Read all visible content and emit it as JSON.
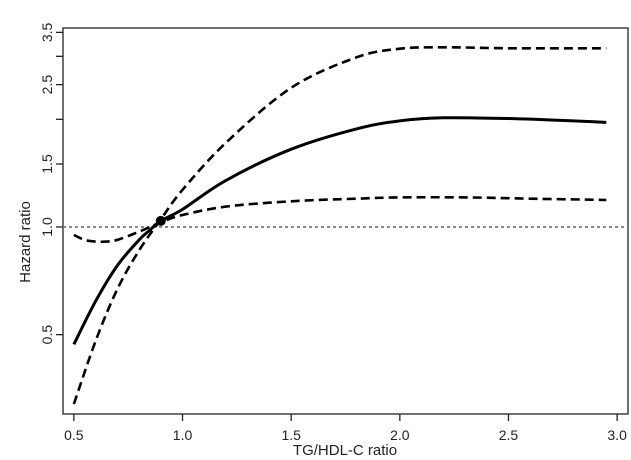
{
  "chart_data": {
    "type": "line",
    "title": "",
    "xlabel": "TG/HDL-C ratio",
    "ylabel": "Hazard ratio",
    "xlim": [
      0.45,
      3.05
    ],
    "ylim": [
      0.3,
      3.6
    ],
    "y_scale": "log",
    "x_ticks": [
      0.5,
      1.0,
      1.5,
      2.0,
      2.5,
      3.0
    ],
    "x_tick_labels": [
      "0.5",
      "1.0",
      "1.5",
      "2.0",
      "2.5",
      "3.0"
    ],
    "y_ticks": [
      0.5,
      1.0,
      1.5,
      2.5,
      3.5
    ],
    "y_tick_labels": [
      "0.5",
      "1.0",
      "1.5",
      "2.5",
      "3.5"
    ],
    "y_minor_ticks": [
      2.0,
      3.0
    ],
    "grid": false,
    "reference_line": {
      "y": 1.0,
      "style": "dotted",
      "color": "#888888"
    },
    "reference_point": {
      "x": 0.9,
      "y": 1.04
    },
    "series": [
      {
        "role": "estimate",
        "style": "solid",
        "color": "#000000",
        "x": [
          0.5,
          0.6,
          0.7,
          0.8,
          0.85,
          0.9,
          1.0,
          1.2,
          1.5,
          1.8,
          2.0,
          2.2,
          2.5,
          2.8,
          2.95
        ],
        "values": [
          0.47,
          0.62,
          0.78,
          0.92,
          0.98,
          1.04,
          1.12,
          1.35,
          1.65,
          1.88,
          1.98,
          2.02,
          2.01,
          1.98,
          1.96
        ]
      },
      {
        "role": "upper-ci",
        "style": "dashed",
        "color": "#000000",
        "x": [
          0.5,
          0.6,
          0.7,
          0.8,
          0.9,
          1.0,
          1.2,
          1.5,
          1.8,
          2.0,
          2.2,
          2.5,
          2.8,
          2.95
        ],
        "values": [
          0.32,
          0.48,
          0.67,
          0.86,
          1.05,
          1.27,
          1.72,
          2.45,
          2.98,
          3.15,
          3.18,
          3.16,
          3.16,
          3.16
        ]
      },
      {
        "role": "lower-ci",
        "style": "dashed",
        "color": "#000000",
        "x": [
          0.5,
          0.55,
          0.6,
          0.65,
          0.7,
          0.8,
          0.9,
          1.0,
          1.2,
          1.5,
          1.8,
          2.0,
          2.3,
          2.6,
          2.95
        ],
        "values": [
          0.95,
          0.92,
          0.91,
          0.91,
          0.92,
          0.97,
          1.03,
          1.08,
          1.14,
          1.18,
          1.2,
          1.21,
          1.21,
          1.2,
          1.19
        ]
      }
    ]
  }
}
